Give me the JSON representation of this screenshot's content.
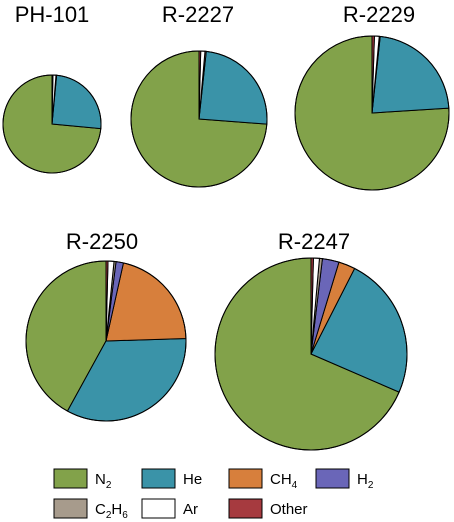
{
  "chart_data": [
    {
      "type": "pie",
      "title": "PH-101",
      "categories": [
        "N2",
        "He",
        "CH4",
        "H2",
        "C2H6",
        "Ar",
        "Other"
      ],
      "values": [
        73.5,
        25.0,
        0.0,
        0.0,
        0.2,
        1.0,
        0.3
      ]
    },
    {
      "type": "pie",
      "title": "R-2227",
      "categories": [
        "N2",
        "He",
        "CH4",
        "H2",
        "C2H6",
        "Ar",
        "Other"
      ],
      "values": [
        73.8,
        24.5,
        0.0,
        0.0,
        0.3,
        1.0,
        0.4
      ]
    },
    {
      "type": "pie",
      "title": "R-2229",
      "categories": [
        "N2",
        "He",
        "CH4",
        "H2",
        "C2H6",
        "Ar",
        "Other"
      ],
      "values": [
        76.0,
        22.3,
        0.0,
        0.0,
        0.2,
        1.0,
        0.5
      ]
    },
    {
      "type": "pie",
      "title": "R-2250",
      "categories": [
        "N2",
        "He",
        "CH4",
        "H2",
        "C2H6",
        "Ar",
        "Other"
      ],
      "values": [
        42.0,
        33.5,
        21.0,
        1.5,
        0.4,
        1.2,
        0.4
      ]
    },
    {
      "type": "pie",
      "title": "R-2247",
      "categories": [
        "N2",
        "He",
        "CH4",
        "H2",
        "C2H6",
        "Ar",
        "Other"
      ],
      "values": [
        68.5,
        24.0,
        2.8,
        2.8,
        0.5,
        1.0,
        0.4
      ]
    }
  ],
  "legend": {
    "placement": "bottom",
    "entries": [
      {
        "key": "N2",
        "base": "N",
        "sub": "2",
        "color": "#82a24a"
      },
      {
        "key": "He",
        "base": "He",
        "sub": "",
        "color": "#3a93a8"
      },
      {
        "key": "CH4",
        "base": "CH",
        "sub": "4",
        "color": "#d77f3c"
      },
      {
        "key": "H2",
        "base": "H",
        "sub": "2",
        "color": "#6a66b8"
      },
      {
        "key": "C2H6",
        "base": "C",
        "sub": "2",
        "base2": "H",
        "sub2": "6",
        "color": "#a79b8c"
      },
      {
        "key": "Ar",
        "base": "Ar",
        "sub": "",
        "color": "#ffffff"
      },
      {
        "key": "Other",
        "base": "Other",
        "sub": "",
        "color": "#a63a3f"
      }
    ]
  }
}
